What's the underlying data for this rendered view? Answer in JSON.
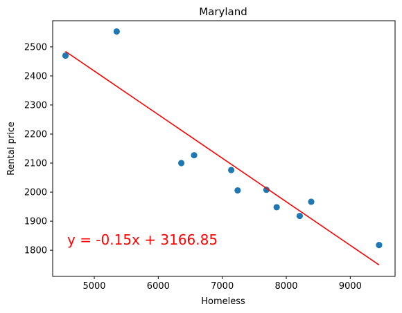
{
  "chart_data": {
    "type": "scatter",
    "title": "Maryland",
    "xlabel": "Homeless",
    "ylabel": "Rental price",
    "xlim": [
      4350,
      9700
    ],
    "ylim": [
      1710,
      2590
    ],
    "xticks": [
      5000,
      6000,
      7000,
      8000,
      9000
    ],
    "yticks": [
      1800,
      1900,
      2000,
      2100,
      2200,
      2300,
      2400,
      2500
    ],
    "grid": false,
    "series": [
      {
        "points": [
          {
            "x": 4550,
            "y": 2470
          },
          {
            "x": 5350,
            "y": 2553
          },
          {
            "x": 6360,
            "y": 2100
          },
          {
            "x": 6560,
            "y": 2127
          },
          {
            "x": 7140,
            "y": 2076
          },
          {
            "x": 7240,
            "y": 2006
          },
          {
            "x": 7690,
            "y": 2008
          },
          {
            "x": 7850,
            "y": 1948
          },
          {
            "x": 8210,
            "y": 1918
          },
          {
            "x": 8390,
            "y": 1967
          },
          {
            "x": 9450,
            "y": 1818
          }
        ],
        "color": "#1f77b4"
      }
    ],
    "regression": {
      "slope": -0.15,
      "intercept": 3166.85,
      "x_range": [
        4550,
        9450
      ],
      "color": "#ff0000",
      "equation": "y = -0.15x + 3166.85"
    }
  }
}
